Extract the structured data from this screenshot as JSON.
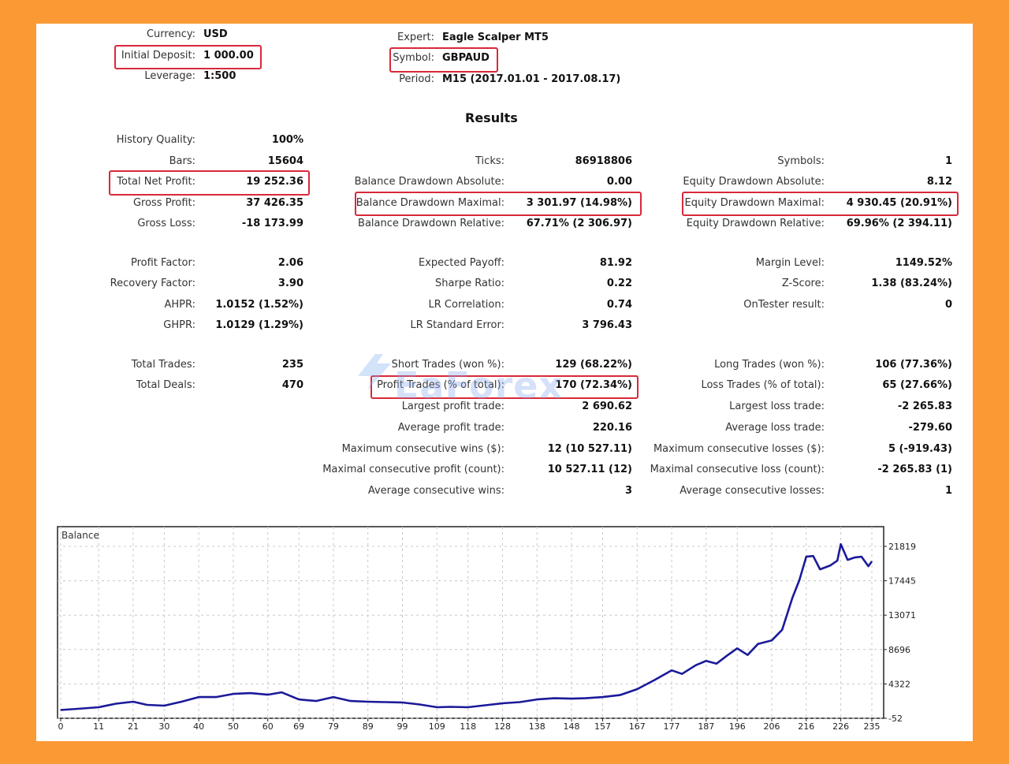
{
  "header": {
    "currency": {
      "label": "Currency:",
      "value": "USD"
    },
    "initial_deposit": {
      "label": "Initial Deposit:",
      "value": "1 000.00"
    },
    "leverage": {
      "label": "Leverage:",
      "value": "1:500"
    },
    "expert": {
      "label": "Expert:",
      "value": "Eagle Scalper MT5"
    },
    "symbol": {
      "label": "Symbol:",
      "value": "GBPAUD"
    },
    "period": {
      "label": "Period:",
      "value": "M15 (2017.01.01 - 2017.08.17)"
    }
  },
  "results_title": "Results",
  "col1": [
    {
      "label": "History Quality:",
      "value": "100%"
    },
    {
      "label": "Bars:",
      "value": "15604"
    },
    {
      "label": "Total Net Profit:",
      "value": "19 252.36"
    },
    {
      "label": "Gross Profit:",
      "value": "37 426.35"
    },
    {
      "label": "Gross Loss:",
      "value": "-18 173.99"
    },
    {
      "label": "Profit Factor:",
      "value": "2.06"
    },
    {
      "label": "Recovery Factor:",
      "value": "3.90"
    },
    {
      "label": "AHPR:",
      "value": "1.0152 (1.52%)"
    },
    {
      "label": "GHPR:",
      "value": "1.0129 (1.29%)"
    },
    {
      "label": "Total Trades:",
      "value": "235"
    },
    {
      "label": "Total Deals:",
      "value": "470"
    }
  ],
  "col2": [
    {
      "label": "Ticks:",
      "value": "86918806"
    },
    {
      "label": "Balance Drawdown Absolute:",
      "value": "0.00"
    },
    {
      "label": "Balance Drawdown Maximal:",
      "value": "3 301.97 (14.98%)"
    },
    {
      "label": "Balance Drawdown Relative:",
      "value": "67.71% (2 306.97)"
    },
    {
      "label": "Expected Payoff:",
      "value": "81.92"
    },
    {
      "label": "Sharpe Ratio:",
      "value": "0.22"
    },
    {
      "label": "LR Correlation:",
      "value": "0.74"
    },
    {
      "label": "LR Standard Error:",
      "value": "3 796.43"
    },
    {
      "label": "Short Trades (won %):",
      "value": "129 (68.22%)"
    },
    {
      "label": "Profit Trades (% of total):",
      "value": "170 (72.34%)"
    },
    {
      "label": "Largest profit trade:",
      "value": "2 690.62"
    },
    {
      "label": "Average profit trade:",
      "value": "220.16"
    },
    {
      "label": "Maximum consecutive wins ($):",
      "value": "12 (10 527.11)"
    },
    {
      "label": "Maximal consecutive profit (count):",
      "value": "10 527.11 (12)"
    },
    {
      "label": "Average consecutive wins:",
      "value": "3"
    }
  ],
  "col3": [
    {
      "label": "Symbols:",
      "value": "1"
    },
    {
      "label": "Equity Drawdown Absolute:",
      "value": "8.12"
    },
    {
      "label": "Equity Drawdown Maximal:",
      "value": "4 930.45 (20.91%)"
    },
    {
      "label": "Equity Drawdown Relative:",
      "value": "69.96% (2 394.11)"
    },
    {
      "label": "Margin Level:",
      "value": "1149.52%"
    },
    {
      "label": "Z-Score:",
      "value": "1.38 (83.24%)"
    },
    {
      "label": "OnTester result:",
      "value": "0"
    },
    {
      "label": "Long Trades (won %):",
      "value": "106 (77.36%)"
    },
    {
      "label": "Loss Trades (% of total):",
      "value": "65 (27.66%)"
    },
    {
      "label": "Largest loss trade:",
      "value": "-2 265.83"
    },
    {
      "label": "Average loss trade:",
      "value": "-279.60"
    },
    {
      "label": "Maximum consecutive losses ($):",
      "value": "5 (-919.43)"
    },
    {
      "label": "Maximal consecutive loss (count):",
      "value": "-2 265.83 (1)"
    },
    {
      "label": "Average consecutive losses:",
      "value": "1"
    }
  ],
  "watermark": "EaForex",
  "colors": {
    "background": "#fb9a35",
    "highlight": "#d8293a",
    "line": "#1a1a9a"
  },
  "chart_data": {
    "type": "line",
    "title": "Balance",
    "xlabel": "",
    "ylabel": "",
    "x_ticks": [
      0,
      11,
      21,
      30,
      40,
      50,
      60,
      69,
      79,
      89,
      99,
      109,
      118,
      128,
      138,
      148,
      157,
      167,
      177,
      187,
      196,
      206,
      216,
      226,
      235
    ],
    "y_ticks": [
      -52,
      4322,
      8696,
      13071,
      17445,
      21819
    ],
    "xlim": [
      0,
      236
    ],
    "ylim": [
      -52,
      24200
    ],
    "grid": true,
    "y_axis_side": "right",
    "series": [
      {
        "name": "Balance",
        "x": [
          0,
          5,
          11,
          16,
          21,
          25,
          30,
          35,
          40,
          45,
          50,
          55,
          60,
          64,
          69,
          74,
          79,
          84,
          89,
          94,
          99,
          104,
          109,
          113,
          118,
          123,
          128,
          133,
          138,
          143,
          148,
          152,
          157,
          162,
          167,
          172,
          177,
          180,
          184,
          187,
          190,
          193,
          196,
          199,
          202,
          206,
          209,
          212,
          214,
          216,
          218,
          220,
          223,
          225,
          226,
          228,
          230,
          232,
          234,
          235
        ],
        "values": [
          1000,
          1150,
          1350,
          1800,
          2050,
          1650,
          1550,
          2050,
          2650,
          2650,
          3050,
          3150,
          2950,
          3250,
          2350,
          2150,
          2650,
          2150,
          2050,
          2000,
          1950,
          1700,
          1350,
          1400,
          1350,
          1600,
          1850,
          2000,
          2350,
          2500,
          2450,
          2500,
          2650,
          2900,
          3650,
          4800,
          6050,
          5600,
          6700,
          7250,
          6900,
          7900,
          8850,
          8000,
          9400,
          9850,
          11200,
          15300,
          17500,
          20500,
          20600,
          18900,
          19400,
          20000,
          22100,
          20100,
          20400,
          20500,
          19300,
          19900
        ]
      }
    ]
  }
}
